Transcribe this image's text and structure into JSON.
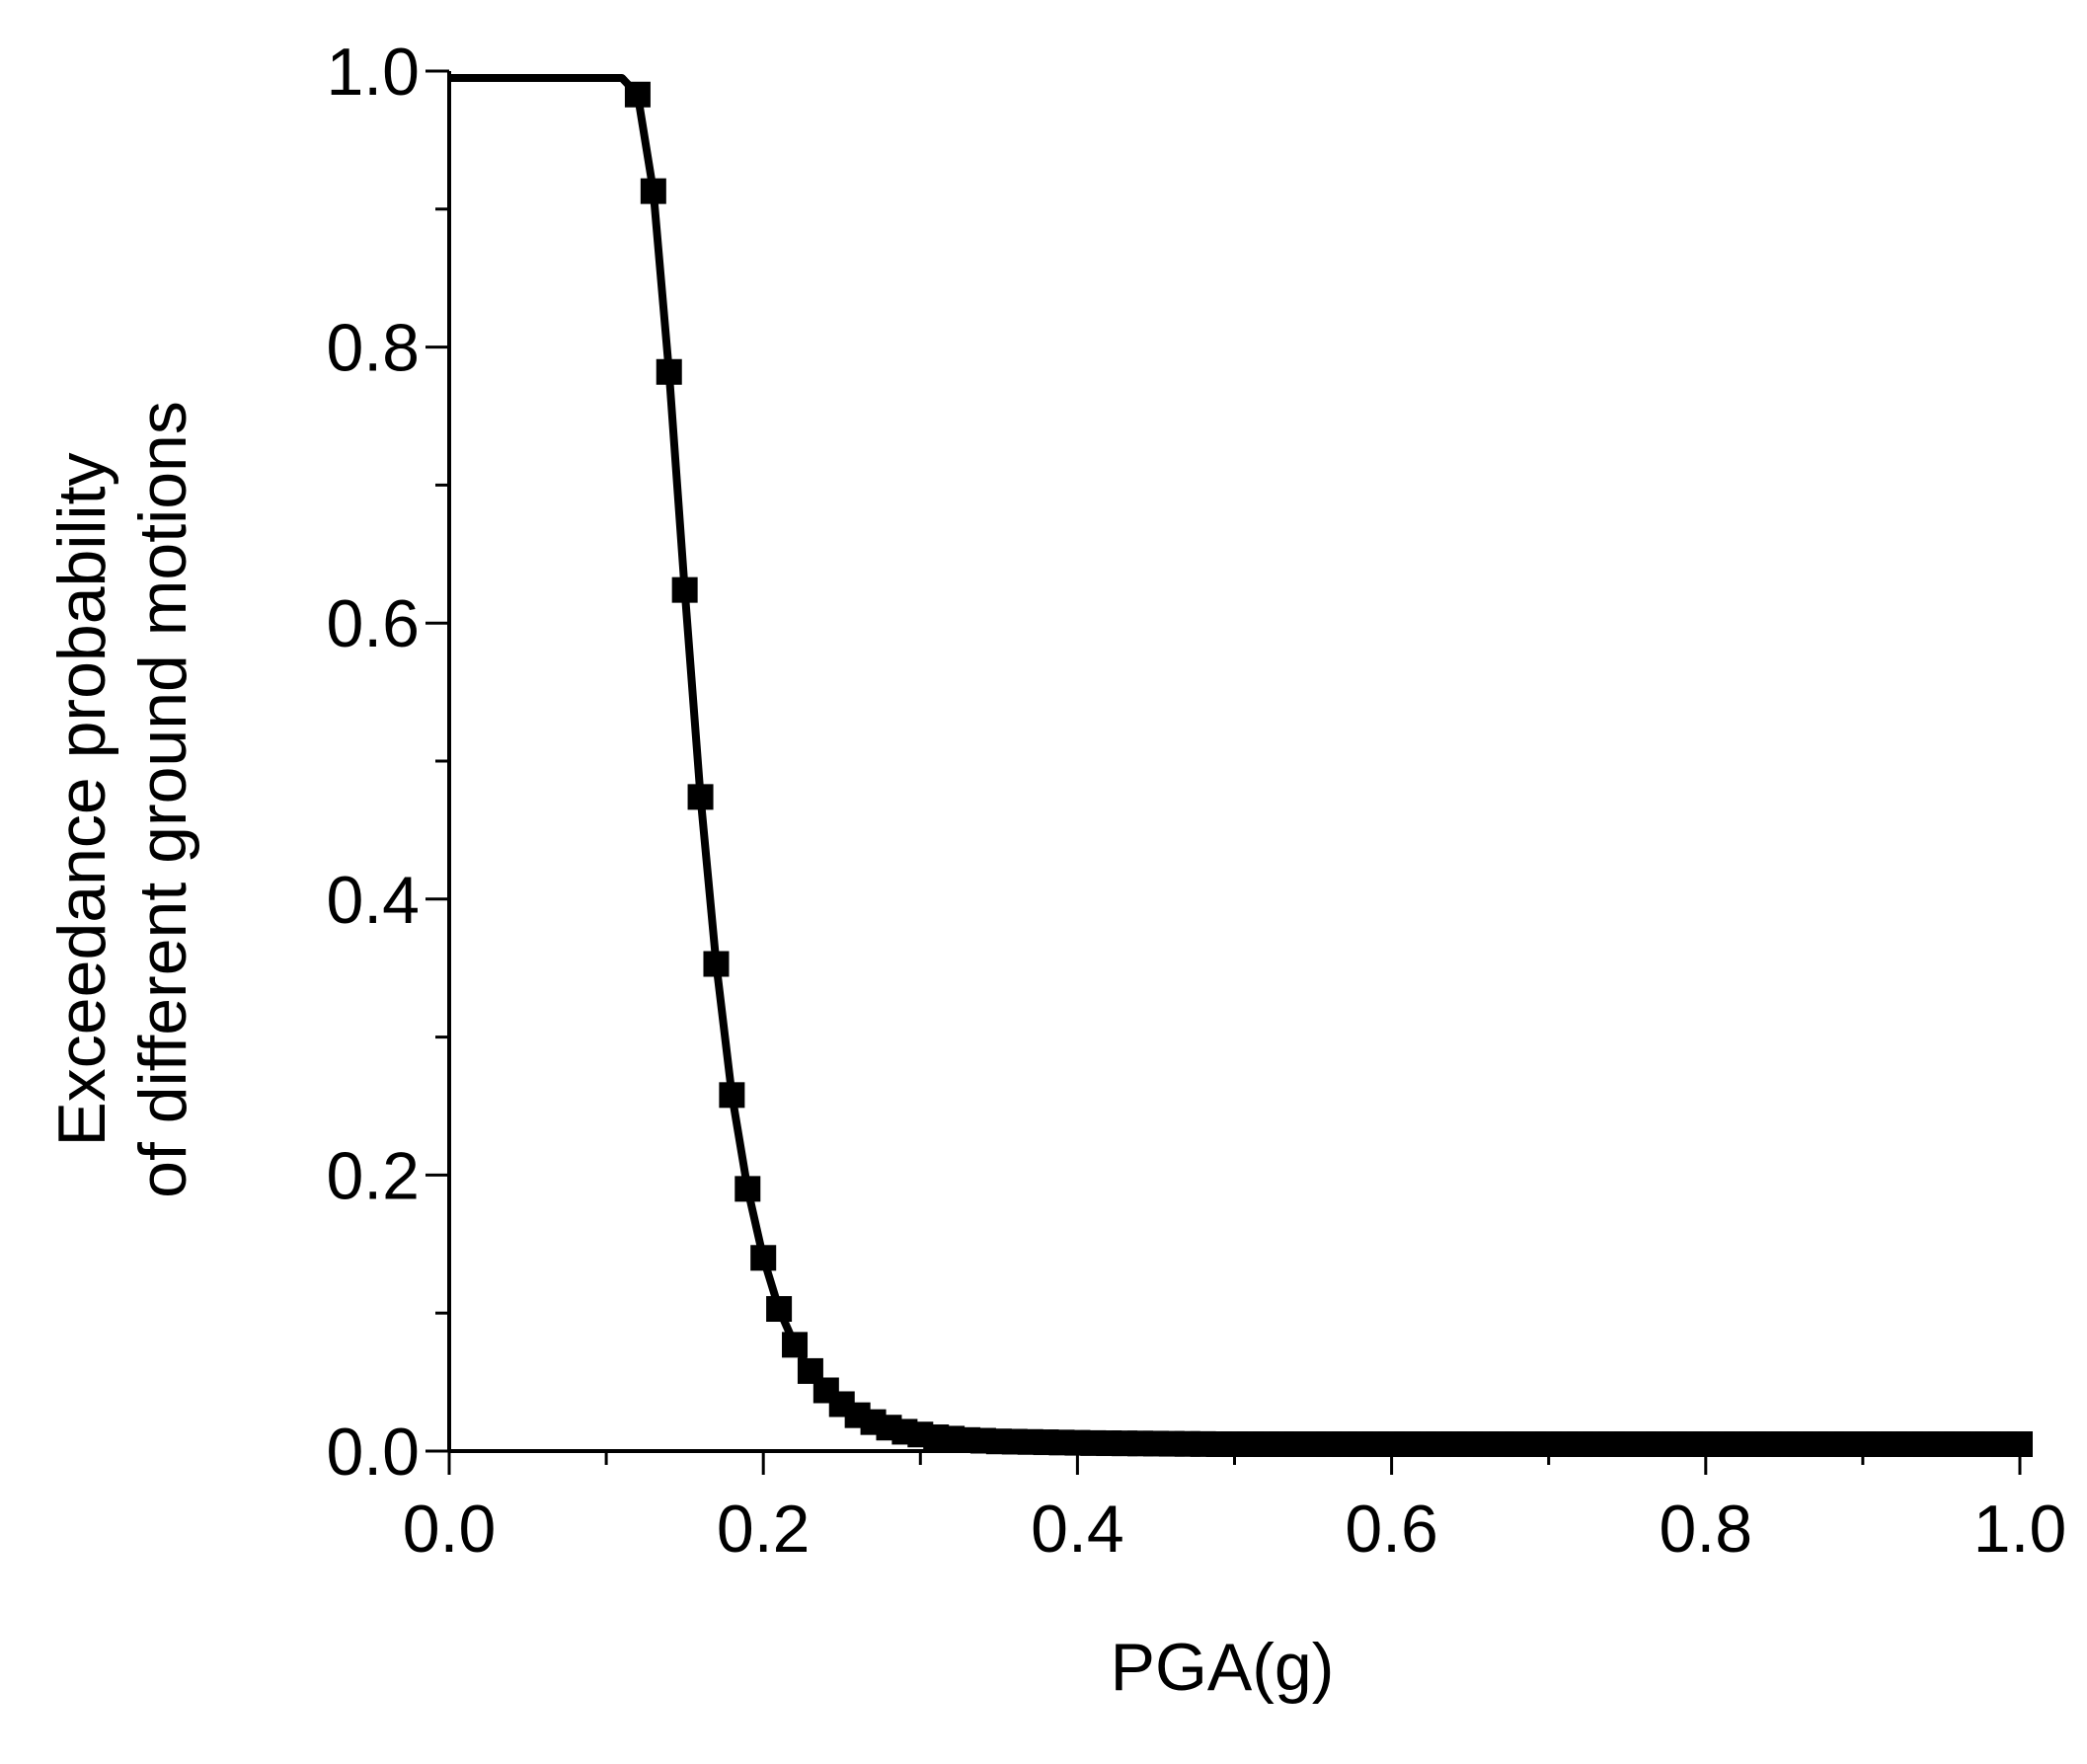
{
  "chart_data": {
    "type": "line",
    "title": "",
    "xlabel": "PGA(g)",
    "ylabel": [
      "Exceedance probability",
      "of different ground motions"
    ],
    "xlim": [
      0,
      1.0
    ],
    "ylim": [
      0,
      1.0
    ],
    "grid": false,
    "legend": "none",
    "x_ticks": [
      "0.0",
      "0.2",
      "0.4",
      "0.6",
      "0.8",
      "1.0"
    ],
    "y_ticks": [
      "0.0",
      "0.2",
      "0.4",
      "0.6",
      "0.8",
      "1.0"
    ],
    "colors": {
      "line": "#000000",
      "marker": "#000000",
      "axis": "#000000"
    },
    "marker": "square",
    "series": [
      {
        "x": [
          0.0,
          0.01,
          0.02,
          0.03,
          0.04,
          0.05,
          0.06,
          0.07,
          0.08,
          0.09,
          0.1,
          0.11,
          0.12,
          0.13,
          0.14,
          0.15,
          0.16,
          0.17,
          0.18,
          0.19,
          0.2,
          0.21,
          0.22,
          0.23,
          0.24,
          0.25,
          0.26,
          0.27,
          0.28,
          0.29,
          0.3,
          0.31,
          0.32,
          0.33,
          0.34,
          0.35,
          0.36,
          0.37,
          0.38,
          0.39,
          0.4,
          0.41,
          0.42,
          0.43,
          0.44,
          0.45,
          0.46,
          0.47,
          0.48,
          0.49,
          0.5,
          0.51,
          0.52,
          0.53,
          0.54,
          0.55,
          0.56,
          0.57,
          0.58,
          0.59,
          0.6,
          0.61,
          0.62,
          0.63,
          0.64,
          0.65,
          0.66,
          0.67,
          0.68,
          0.69,
          0.7,
          0.71,
          0.72,
          0.73,
          0.74,
          0.75,
          0.76,
          0.77,
          0.78,
          0.79,
          0.8,
          0.81,
          0.82,
          0.83,
          0.84,
          0.85,
          0.86,
          0.87,
          0.88,
          0.89,
          0.9,
          0.91,
          0.92,
          0.93,
          0.94,
          0.95,
          0.96,
          0.97,
          0.98,
          0.99,
          1.0
        ],
        "y": [
          0.995,
          0.995,
          0.995,
          0.995,
          0.995,
          0.995,
          0.995,
          0.995,
          0.995,
          0.995,
          0.995,
          0.995,
          0.983,
          0.913,
          0.782,
          0.624,
          0.474,
          0.353,
          0.258,
          0.19,
          0.14,
          0.103,
          0.077,
          0.058,
          0.044,
          0.034,
          0.026,
          0.021,
          0.017,
          0.014,
          0.012,
          0.01,
          0.009,
          0.008,
          0.0075,
          0.007,
          0.0068,
          0.0066,
          0.0064,
          0.0062,
          0.006,
          0.0058,
          0.0057,
          0.0056,
          0.0055,
          0.0054,
          0.0053,
          0.0052,
          0.0051,
          0.005,
          0.005,
          0.005,
          0.005,
          0.005,
          0.005,
          0.005,
          0.005,
          0.005,
          0.005,
          0.005,
          0.005,
          0.005,
          0.005,
          0.005,
          0.005,
          0.005,
          0.005,
          0.005,
          0.005,
          0.005,
          0.005,
          0.005,
          0.005,
          0.005,
          0.005,
          0.005,
          0.005,
          0.005,
          0.005,
          0.005,
          0.005,
          0.005,
          0.005,
          0.005,
          0.005,
          0.005,
          0.005,
          0.005,
          0.005,
          0.005,
          0.005,
          0.005,
          0.005,
          0.005,
          0.005,
          0.005,
          0.005,
          0.005,
          0.005,
          0.005,
          0.005
        ],
        "marker_start": 0.12
      }
    ]
  }
}
